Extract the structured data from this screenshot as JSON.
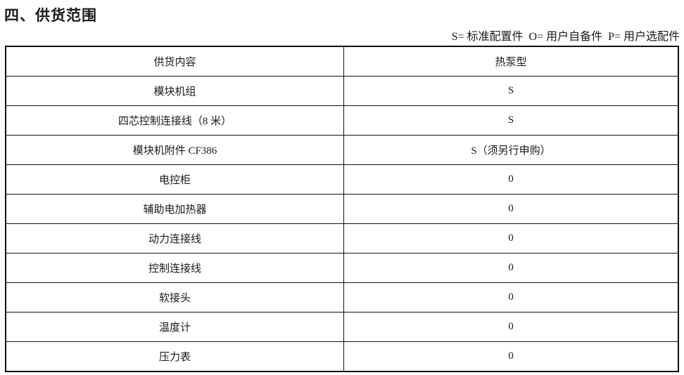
{
  "title": "四、供货范围",
  "legend": "S= 标准配置件  O= 用户自备件  P= 用户选配件",
  "table": {
    "headers": [
      "供货内容",
      "热泵型"
    ],
    "rows": [
      [
        "模块机组",
        "S"
      ],
      [
        "四芯控制连接线（8 米）",
        "S"
      ],
      [
        "模块机附件 CF386",
        "S（须另行申购）"
      ],
      [
        "电控柜",
        "0"
      ],
      [
        "辅助电加热器",
        "0"
      ],
      [
        "动力连接线",
        "0"
      ],
      [
        "控制连接线",
        "0"
      ],
      [
        "软接头",
        "0"
      ],
      [
        "温度计",
        "0"
      ],
      [
        "压力表",
        "0"
      ]
    ]
  }
}
